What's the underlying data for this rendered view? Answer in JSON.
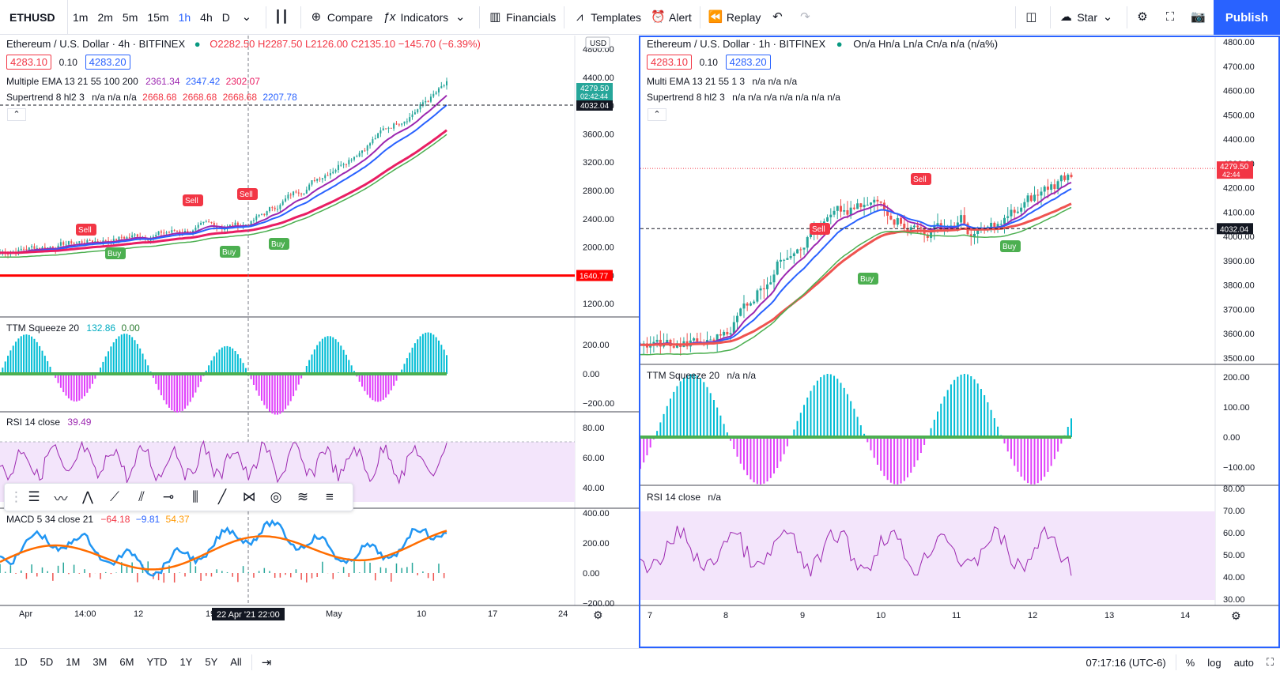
{
  "toolbar": {
    "symbol": "ETHUSD",
    "intervals": [
      "1m",
      "2m",
      "5m",
      "15m",
      "1h",
      "4h",
      "D"
    ],
    "active_interval": "1h",
    "compare": "Compare",
    "indicators": "Indicators",
    "financials": "Financials",
    "templates": "Templates",
    "alert": "Alert",
    "replay": "Replay",
    "star": "Star",
    "publish": "Publish"
  },
  "left_chart": {
    "title": "Ethereum / U.S. Dollar · 4h · BITFINEX",
    "ohlc": "O2282.50 H2287.50 L2126.00 C2135.10 −145.70 (−6.39%)",
    "bid": "4283.10",
    "spread": "0.10",
    "ask": "4283.20",
    "ema": "Multiple EMA 13 21 55 100 200",
    "ema_vals": [
      "2361.34",
      "2347.42",
      "2302.07"
    ],
    "supertrend": "Supertrend 8 hl2 3",
    "supertrend_vals": "n/a n/a n/a",
    "supertrend_vals2": [
      "2668.68",
      "2668.68",
      "2668.68"
    ],
    "supertrend_val3": "2207.78",
    "currency": "USD",
    "price_axis": [
      "4800.00",
      "4400.00",
      "4000.00",
      "3600.00",
      "3200.00",
      "2800.00",
      "2400.00",
      "2000.00",
      "1600.00",
      "1200.00"
    ],
    "last_price": "4279.50",
    "countdown": "02:42:44",
    "cross_price": "4032.04",
    "support_price": "1640.77",
    "ttm": "TTM Squeeze 20",
    "ttm_vals": [
      "132.86",
      "0.00"
    ],
    "ttm_axis": [
      "200.00",
      "0.00",
      "−200.00"
    ],
    "rsi": "RSI 14 close",
    "rsi_val": "39.49",
    "rsi_axis": [
      "80.00",
      "60.00",
      "40.00"
    ],
    "macd": "MACD 5 34 close 21",
    "macd_vals": [
      "−64.18",
      "−9.81",
      "54.37"
    ],
    "macd_axis": [
      "400.00",
      "200.00",
      "0.00",
      "−200.00"
    ],
    "time_axis": [
      "Apr",
      "14:00",
      "12",
      "19",
      "May",
      "10",
      "17",
      "24"
    ],
    "crosshair_time": "22 Apr '21   22:00",
    "signals": [
      "Sell",
      "Sell",
      "Sell",
      "Buy",
      "Buy",
      "Buy"
    ]
  },
  "right_chart": {
    "title": "Ethereum / U.S. Dollar · 1h · BITFINEX",
    "ohlc": "On/a Hn/a Ln/a Cn/a n/a (n/a%)",
    "bid": "4283.10",
    "spread": "0.10",
    "ask": "4283.20",
    "ema": "Multi EMA 13 21 55 1 3",
    "ema_vals": "n/a n/a n/a",
    "supertrend": "Supertrend 8 hl2 3",
    "supertrend_vals": "n/a n/a n/a n/a n/a n/a n/a",
    "price_axis": [
      "4800.00",
      "4700.00",
      "4600.00",
      "4500.00",
      "4400.00",
      "4300.00",
      "4200.00",
      "4100.00",
      "4000.00",
      "3900.00",
      "3800.00",
      "3700.00",
      "3600.00",
      "3500.00"
    ],
    "last_price": "4279.50",
    "countdown": "42:44",
    "cross_price": "4032.04",
    "ttm": "TTM Squeeze 20",
    "ttm_vals": "n/a n/a",
    "ttm_axis": [
      "200.00",
      "100.00",
      "0.00",
      "−100.00"
    ],
    "rsi": "RSI 14 close",
    "rsi_val": "n/a",
    "rsi_axis": [
      "80.00",
      "70.00",
      "60.00",
      "50.00",
      "40.00",
      "30.00"
    ],
    "time_axis": [
      "7",
      "8",
      "9",
      "10",
      "11",
      "12",
      "13",
      "14"
    ],
    "signals": [
      "Sell",
      "Sell",
      "Buy",
      "Buy"
    ]
  },
  "bottombar": {
    "ranges": [
      "1D",
      "5D",
      "1M",
      "3M",
      "6M",
      "YTD",
      "1Y",
      "5Y",
      "All"
    ],
    "clock": "07:17:16 (UTC-6)",
    "percent": "%",
    "log": "log",
    "auto": "auto"
  },
  "colors": {
    "accent": "#2962ff",
    "bull": "#26a69a",
    "bear": "#ef5350",
    "ema_fast": "#9c27b0",
    "ema_mid": "#2962ff",
    "ema_slow": "#e91e63",
    "supertrend_up": "#4caf50",
    "supertrend_down": "#f23645",
    "rsi": "#9c27b0",
    "macd": "#2196f3",
    "signal": "#ff6d00"
  }
}
